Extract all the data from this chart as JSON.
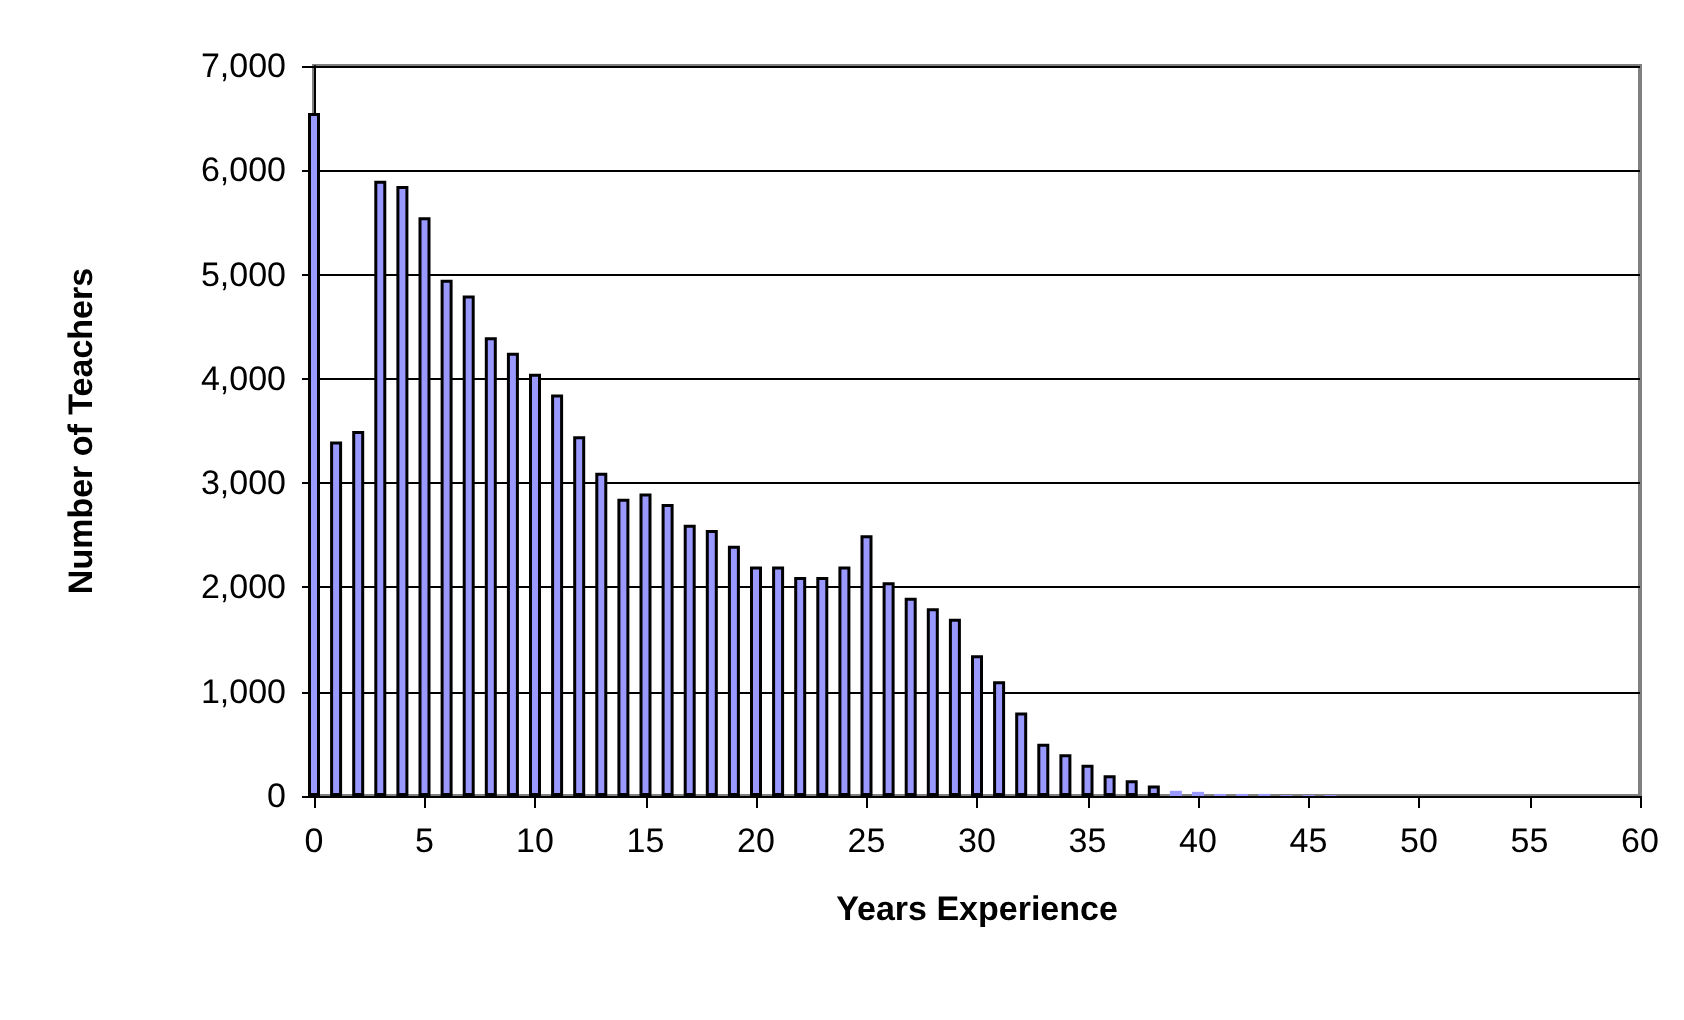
{
  "chart_data": {
    "type": "bar",
    "xlabel": "Years Experience",
    "ylabel": "Number of Teachers",
    "x": [
      0,
      1,
      2,
      3,
      4,
      5,
      6,
      7,
      8,
      9,
      10,
      11,
      12,
      13,
      14,
      15,
      16,
      17,
      18,
      19,
      20,
      21,
      22,
      23,
      24,
      25,
      26,
      27,
      28,
      29,
      30,
      31,
      32,
      33,
      34,
      35,
      36,
      37,
      38,
      39,
      40,
      41,
      42,
      43,
      44,
      45,
      46
    ],
    "values": [
      6550,
      3400,
      3500,
      5900,
      5850,
      5550,
      4950,
      4800,
      4400,
      4250,
      4050,
      3850,
      3450,
      3100,
      2850,
      2900,
      2800,
      2600,
      2550,
      2400,
      2200,
      2200,
      2100,
      2100,
      2200,
      2500,
      2050,
      1900,
      1800,
      1700,
      1350,
      1100,
      800,
      500,
      400,
      300,
      200,
      150,
      100,
      50,
      40,
      20,
      20,
      20,
      10,
      10,
      10
    ],
    "color": "#9999ff",
    "xlim": [
      0,
      60
    ],
    "xticks": [
      0,
      5,
      10,
      15,
      20,
      25,
      30,
      35,
      40,
      45,
      50,
      55,
      60
    ],
    "ylim": [
      0,
      7000
    ],
    "yticks": [
      0,
      {
        "value": 1000,
        "label": "1,000"
      },
      {
        "value": 2000,
        "label": "2,000"
      },
      {
        "value": 3000,
        "label": "3,000"
      },
      {
        "value": 4000,
        "label": "4,000"
      },
      {
        "value": 5000,
        "label": "5,000"
      },
      {
        "value": 6000,
        "label": "6,000"
      },
      {
        "value": 7000,
        "label": "7,000"
      }
    ],
    "grid": "y"
  }
}
